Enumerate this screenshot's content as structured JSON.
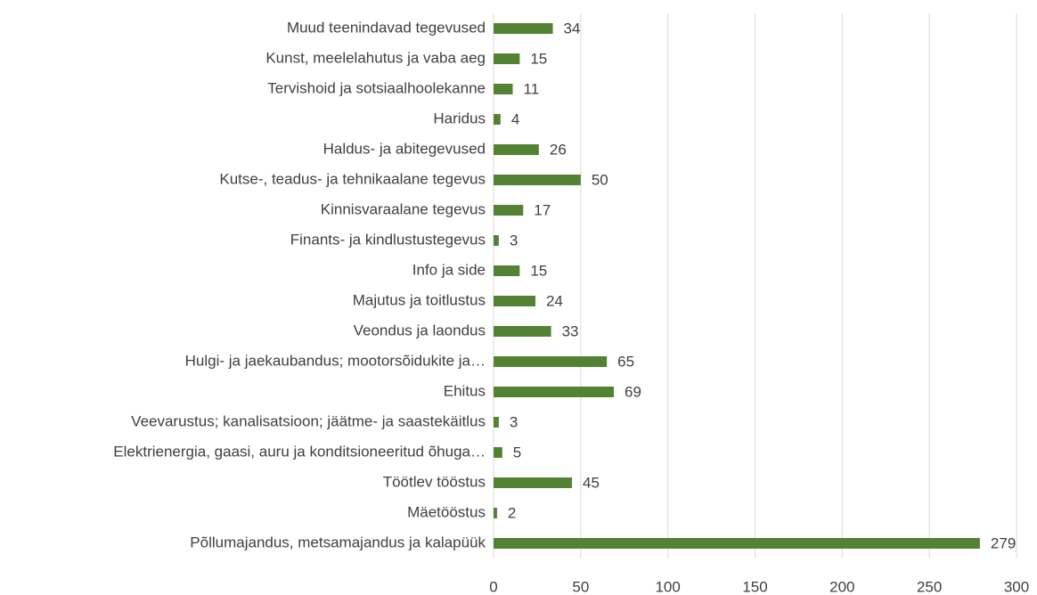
{
  "chart_data": {
    "type": "barh",
    "categories": [
      "Muud teenindavad tegevused",
      "Kunst, meelelahutus ja vaba aeg",
      "Tervishoid ja sotsiaalhoolekanne",
      "Haridus",
      "Haldus- ja abitegevused",
      "Kutse-, teadus- ja tehnikaalane tegevus",
      "Kinnisvaraalane tegevus",
      "Finants- ja kindlustustegevus",
      "Info ja side",
      "Majutus ja toitlustus",
      "Veondus ja laondus",
      "Hulgi- ja jaekaubandus; mootorsõidukite ja…",
      "Ehitus",
      "Veevarustus; kanalisatsioon; jäätme- ja saastekäitlus",
      "Elektrienergia, gaasi, auru ja konditsioneeritud õhuga…",
      "Töötlev tööstus",
      "Mäetööstus",
      "Põllumajandus, metsamajandus ja kalapüük"
    ],
    "values": [
      34,
      15,
      11,
      4,
      26,
      50,
      17,
      3,
      15,
      24,
      33,
      65,
      69,
      3,
      5,
      45,
      2,
      279
    ],
    "color": "#548235",
    "xlim": [
      0,
      300
    ],
    "xticks": [
      0,
      50,
      100,
      150,
      200,
      250,
      300
    ],
    "grid": true
  }
}
